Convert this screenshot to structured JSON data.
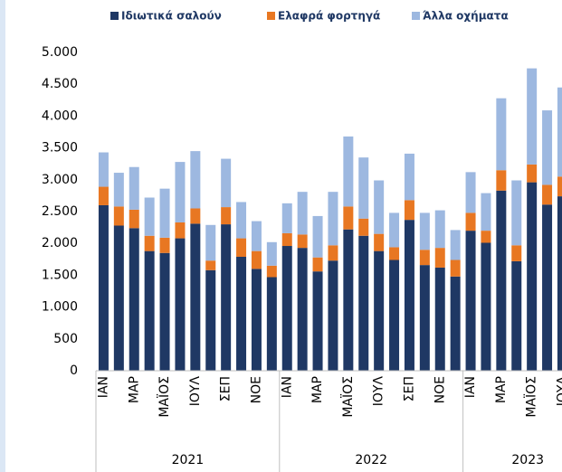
{
  "chart_data": {
    "type": "stacked_bar",
    "categories": [
      "ΙΑΝ",
      null,
      "ΜΑΡ",
      null,
      "ΜΑΪΟΣ",
      null,
      "ΙΟΥΛ",
      null,
      "ΣΕΠ",
      null,
      "ΝΟΕ",
      null,
      "ΙΑΝ",
      null,
      "ΜΑΡ",
      null,
      "ΜΑΪΟΣ",
      null,
      "ΙΟΥΛ",
      null,
      "ΣΕΠ",
      null,
      "ΝΟΕ",
      null,
      "ΙΑΝ",
      null,
      "ΜΑΡ",
      null,
      "ΜΑΪΟΣ",
      null,
      "ΙΟΥΛ"
    ],
    "x_groups": [
      "2021",
      "2022",
      "2023"
    ],
    "series": [
      {
        "name": "Ιδιωτικά σαλούν",
        "color": "#1f3864",
        "values": [
          2600,
          2280,
          2240,
          1880,
          1850,
          2080,
          2310,
          1580,
          2300,
          1790,
          1600,
          1470,
          1960,
          1930,
          1560,
          1730,
          2220,
          2120,
          1880,
          1740,
          2370,
          1660,
          1620,
          1480,
          2200,
          2010,
          2830,
          1720,
          2960,
          2610,
          2740
        ]
      },
      {
        "name": "Ελαφρά φορτηγά",
        "color": "#e87722",
        "values": [
          290,
          300,
          290,
          240,
          240,
          250,
          240,
          150,
          270,
          290,
          280,
          180,
          200,
          210,
          220,
          240,
          360,
          270,
          270,
          200,
          310,
          240,
          310,
          260,
          280,
          190,
          320,
          250,
          280,
          310,
          310
        ]
      },
      {
        "name": "Άλλα οχήματα",
        "color": "#9db8e0",
        "values": [
          540,
          530,
          670,
          600,
          770,
          950,
          900,
          560,
          760,
          570,
          470,
          370,
          470,
          670,
          650,
          840,
          1100,
          960,
          840,
          540,
          730,
          580,
          590,
          470,
          640,
          590,
          1130,
          1020,
          1510,
          1170,
          1400
        ]
      }
    ],
    "ylim": [
      0,
      5000
    ],
    "yticks": [
      0,
      500,
      {
        "value": 1000,
        "label": "1.000"
      },
      {
        "value": 1500,
        "label": "1.500"
      },
      {
        "value": 2000,
        "label": "2.000"
      },
      {
        "value": 2500,
        "label": "2.500"
      },
      {
        "value": 3000,
        "label": "3.000"
      },
      {
        "value": 3500,
        "label": "3.500"
      },
      {
        "value": 4000,
        "label": "4.000"
      },
      {
        "value": 4500,
        "label": "4.500"
      },
      {
        "value": 5000,
        "label": "5.000"
      }
    ],
    "legend": "top"
  }
}
